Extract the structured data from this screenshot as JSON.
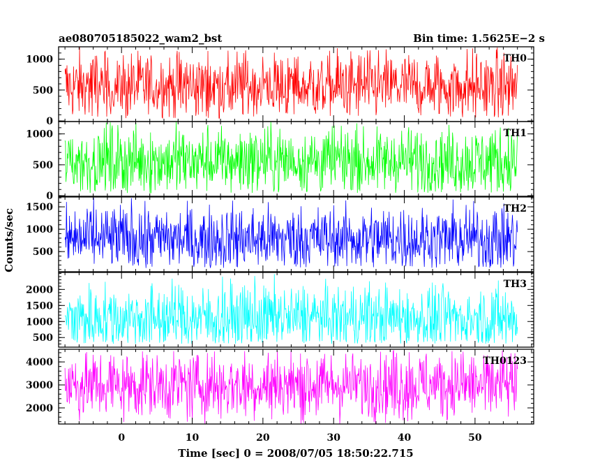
{
  "chart_data": {
    "type": "line",
    "title_left": "ae080705185022_wam2_bst",
    "title_right": "Bin time: 1.5625E−2 s",
    "xlabel": "Time [sec] 0 = 2008/07/05 18:50:22.715",
    "ylabel": "Counts/sec",
    "xlim": [
      -8.9,
      58.3
    ],
    "x_data_range": [
      -8.0,
      56.0
    ],
    "x_ticks": [
      0,
      10,
      20,
      30,
      40,
      50
    ],
    "x_tick_labels": [
      "0",
      "10",
      "20",
      "30",
      "40",
      "50"
    ],
    "x_minor_step": 2,
    "bin_time_s": 0.015625,
    "panels": [
      {
        "name": "TH0",
        "color": "#ff0000",
        "ylim": [
          -10,
          1200
        ],
        "y_ticks": [
          0,
          500,
          1000
        ],
        "y_tick_labels": [
          "0",
          "500",
          "1000"
        ],
        "y_minor_step": 100,
        "mean": 560,
        "low": 40,
        "high": 1200
      },
      {
        "name": "TH1",
        "color": "#00ff00",
        "ylim": [
          -10,
          1200
        ],
        "y_ticks": [
          0,
          500,
          1000
        ],
        "y_tick_labels": [
          "0",
          "500",
          "1000"
        ],
        "y_minor_step": 100,
        "mean": 560,
        "low": 40,
        "high": 1200
      },
      {
        "name": "TH2",
        "color": "#0000ff",
        "ylim": [
          50,
          1720
        ],
        "y_ticks": [
          500,
          1000,
          1500
        ],
        "y_tick_labels": [
          "500",
          "1000",
          "1500"
        ],
        "y_minor_step": 100,
        "mean": 780,
        "low": 130,
        "high": 1700
      },
      {
        "name": "TH3",
        "color": "#00ffff",
        "ylim": [
          200,
          2530
        ],
        "y_ticks": [
          500,
          1000,
          1500,
          2000
        ],
        "y_tick_labels": [
          "500",
          "1000",
          "1500",
          "2000"
        ],
        "y_minor_step": 100,
        "mean": 1100,
        "low": 300,
        "high": 2480
      },
      {
        "name": "TH0123",
        "color": "#ff00ff",
        "ylim": [
          1300,
          4550
        ],
        "y_ticks": [
          2000,
          3000,
          4000
        ],
        "y_tick_labels": [
          "2000",
          "3000",
          "4000"
        ],
        "y_minor_step": 200,
        "mean": 3000,
        "low": 1300,
        "high": 4500
      }
    ]
  }
}
